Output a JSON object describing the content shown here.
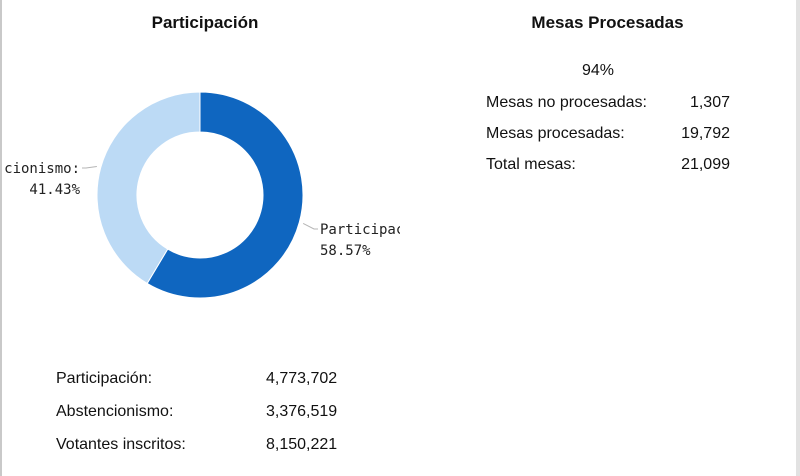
{
  "participacion_panel": {
    "title": "Participación",
    "rows": [
      {
        "label": "Participación:",
        "value": "4,773,702"
      },
      {
        "label": "Abstencionismo:",
        "value": "3,376,519"
      },
      {
        "label": "Votantes inscritos:",
        "value": "8,150,221"
      }
    ]
  },
  "mesas_panel": {
    "title": "Mesas Procesadas",
    "percent": "94%",
    "rows": [
      {
        "label": "Mesas no procesadas:",
        "value": "1,307"
      },
      {
        "label": "Mesas procesadas:",
        "value": "19,792"
      },
      {
        "label": "Total mesas:",
        "value": "21,099"
      }
    ]
  },
  "chart_data": {
    "type": "pie",
    "donut": true,
    "title": "",
    "slices": [
      {
        "name": "Participación",
        "value": 58.57,
        "label_name": "Participac",
        "label_value": "58.57%",
        "color": "#0f66c0"
      },
      {
        "name": "Abstencionismo",
        "value": 41.43,
        "label_name": "cionismo:",
        "label_value": "41.43%",
        "color": "#bcdaf5"
      }
    ]
  }
}
